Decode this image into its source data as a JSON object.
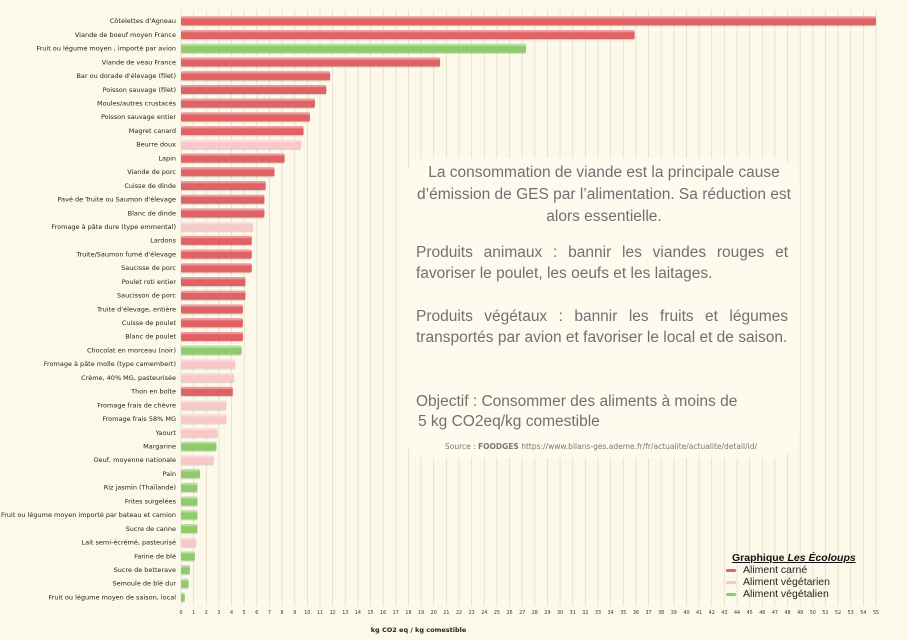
{
  "chart_data": {
    "type": "bar",
    "orientation": "horizontal",
    "xlabel": "kg CO2 eq / kg comestible",
    "xlim": [
      0,
      55
    ],
    "x_ticks": [
      0,
      1,
      2,
      3,
      4,
      5,
      6,
      7,
      8,
      9,
      10,
      11,
      12,
      13,
      14,
      15,
      16,
      17,
      18,
      19,
      20,
      21,
      22,
      23,
      24,
      25,
      26,
      27,
      28,
      29,
      30,
      31,
      32,
      33,
      34,
      35,
      36,
      37,
      38,
      39,
      40,
      41,
      42,
      43,
      44,
      45,
      46,
      47,
      48,
      49,
      50,
      51,
      52,
      53,
      54,
      55
    ],
    "grid": "vertical",
    "legend_position": "bottom-right",
    "categories": [
      "Côtelettes d'Agneau",
      "Viande de boeuf moyen France",
      "Fruit ou légume moyen , importé par avion",
      "Viande de veau France",
      "Bar ou dorade d'élevage (filet)",
      "Poisson sauvage (filet)",
      "Moules/autres crustacés",
      "Poisson sauvage entier",
      "Magret canard",
      "Beurre doux",
      "Lapin",
      "Viande de porc",
      "Cuisse de dinde",
      "Pavé de Truite ou Saumon d'élevage",
      "Blanc de dinde",
      "Fromage à pâte dure (type emmental)",
      "Lardons",
      "Truite/Saumon fumé d'élevage",
      "Saucisse de porc",
      "Poulet roti entier",
      "Saucisson de porc",
      "Truite d'élevage, entière",
      "Cuisse de poulet",
      "Blanc de poulet",
      "Chocolat en morceau (noir)",
      "Fromage à pâte molle (type camembert)",
      "Crème, 40% MG, pasteurisée",
      "Thon en boîte",
      "Fromage frais de chèvre",
      "Fromage frais 58% MG",
      "Yaourt",
      "Margarine",
      "Oeuf, moyenne nationale",
      "Pain",
      "Riz jasmin (Thaïlande)",
      "Frites surgelées",
      "Fruit ou légume moyen importé par bateau et camion",
      "Sucre de canne",
      "Lait semi-écrémé, pasteurisé",
      "Farine de blé",
      "Sucre de betterave",
      "Semoule de blé dur",
      "Fruit ou légume moyen de saison, local"
    ],
    "values": [
      55,
      35.9,
      27.3,
      20.5,
      11.8,
      11.5,
      10.6,
      10.2,
      9.7,
      9.5,
      8.2,
      7.4,
      6.7,
      6.6,
      6.6,
      5.7,
      5.6,
      5.6,
      5.6,
      5.1,
      5.1,
      4.9,
      4.9,
      4.9,
      4.8,
      4.3,
      4.2,
      4.1,
      3.6,
      3.6,
      2.9,
      2.8,
      2.6,
      1.5,
      1.3,
      1.3,
      1.3,
      1.3,
      1.2,
      1.1,
      0.7,
      0.6,
      0.3
    ],
    "groups": [
      "carne",
      "carne",
      "vegetalien",
      "carne",
      "carne",
      "carne",
      "carne",
      "carne",
      "carne",
      "vegetarien",
      "carne",
      "carne",
      "carne",
      "carne",
      "carne",
      "vegetarien",
      "carne",
      "carne",
      "carne",
      "carne",
      "carne",
      "carne",
      "carne",
      "carne",
      "vegetalien",
      "vegetarien",
      "vegetarien",
      "carne",
      "vegetarien",
      "vegetarien",
      "vegetarien",
      "vegetalien",
      "vegetarien",
      "vegetalien",
      "vegetalien",
      "vegetalien",
      "vegetalien",
      "vegetalien",
      "vegetarien",
      "vegetalien",
      "vegetalien",
      "vegetalien",
      "vegetalien"
    ],
    "colors": {
      "carne": "#e06264",
      "vegetarien": "#f6c8c8",
      "vegetalien": "#8fca6c"
    }
  },
  "info": {
    "intro": "La consommation de viande est la principale cause d’émission de GES par l’alimentation. Sa réduction est alors essentielle.",
    "animaux": "Produits animaux : bannir les viandes rouges et favoriser le poulet, les oeufs et les laitages.",
    "vegetaux": "Produits végétaux : bannir les fruits et légumes transportés par avion et favoriser le local et de saison.",
    "objectif_line1": "Objectif : Consommer des aliments à moins de",
    "objectif_line2": "5 kg CO2eq/kg comestible",
    "source_prefix": "Source : ",
    "source_name": "FOODGES",
    "source_url": "https://www.bilans-ges.ademe.fr/fr/actualite/actualite/detail/id/"
  },
  "legend": {
    "title_prefix": "Graphique ",
    "title_brand": "Les Écoloups",
    "items": [
      {
        "label": "Aliment carné",
        "color": "#e06264"
      },
      {
        "label": "Aliment végétarien",
        "color": "#f6c8c8"
      },
      {
        "label": "Aliment végétalien",
        "color": "#8fca6c"
      }
    ]
  }
}
